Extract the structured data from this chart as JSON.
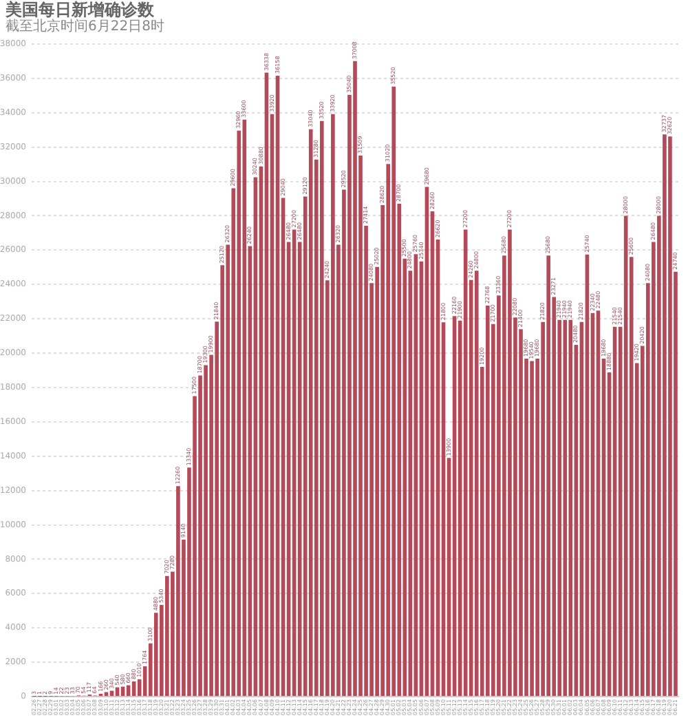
{
  "chart_data": {
    "type": "bar",
    "title": "美国每日新增确诊数",
    "subtitle": "截至北京时间6月22日8时",
    "categories": [
      "02.26",
      "02.27",
      "02.28",
      "02.29",
      "03.01",
      "03.02",
      "03.03",
      "03.04",
      "03.05",
      "03.06",
      "03.07",
      "03.08",
      "03.09",
      "03.10",
      "03.11",
      "03.12",
      "03.13",
      "03.14",
      "03.15",
      "03.16",
      "03.17",
      "03.18",
      "03.19",
      "03.20",
      "03.21",
      "03.22",
      "03.23",
      "03.24",
      "03.25",
      "03.26",
      "03.27",
      "03.28",
      "03.29",
      "03.30",
      "03.31",
      "04.01",
      "04.02",
      "04.03",
      "04.04",
      "04.05",
      "04.06",
      "04.07",
      "04.08",
      "04.09",
      "04.10",
      "04.11",
      "04.12",
      "04.13",
      "04.14",
      "04.15",
      "04.16",
      "04.17",
      "04.18",
      "04.19",
      "04.20",
      "04.21",
      "04.22",
      "04.23",
      "04.24",
      "04.25",
      "04.26",
      "04.27",
      "04.28",
      "04.29",
      "04.30",
      "05.01",
      "05.02",
      "05.03",
      "05.04",
      "05.05",
      "05.06",
      "05.07",
      "05.08",
      "05.09",
      "05.10",
      "05.11",
      "05.12",
      "05.13",
      "05.14",
      "05.15",
      "05.16",
      "05.17",
      "05.18",
      "05.19",
      "05.20",
      "05.21",
      "05.22",
      "05.23",
      "05.24",
      "05.25",
      "05.26",
      "05.27",
      "05.28",
      "05.29",
      "05.30",
      "05.31",
      "06.01",
      "06.02",
      "06.03",
      "06.04",
      "06.05",
      "06.06",
      "06.07",
      "06.08",
      "06.09",
      "06.10",
      "06.11",
      "06.12",
      "06.13",
      "06.14",
      "06.15",
      "06.16",
      "06.17",
      "06.18",
      "06.19",
      "06.20",
      "06.21"
    ],
    "values": [
      3,
      1,
      2,
      9,
      14,
      22,
      23,
      33,
      70,
      54,
      117,
      64,
      166,
      260,
      340,
      540,
      580,
      660,
      880,
      1010,
      1764,
      3100,
      4880,
      5340,
      7020,
      7280,
      12260,
      9140,
      13340,
      17500,
      18700,
      19300,
      19900,
      21840,
      25120,
      26320,
      29600,
      32960,
      33600,
      26240,
      30240,
      30880,
      36338,
      33920,
      36158,
      29040,
      26480,
      27200,
      26480,
      29120,
      33040,
      31280,
      33520,
      24240,
      33920,
      26320,
      29520,
      35040,
      37008,
      31509,
      27414,
      24080,
      25020,
      28620,
      31020,
      35520,
      28700,
      25500,
      24800,
      25760,
      25340,
      29680,
      28260,
      26620,
      21800,
      13900,
      22160,
      21900,
      27200,
      24260,
      24800,
      19200,
      22768,
      21700,
      23360,
      25680,
      27200,
      22080,
      21400,
      19680,
      19540,
      19680,
      21820,
      25680,
      23271,
      21940,
      21940,
      21940,
      20480,
      21820,
      25740,
      22340,
      22480,
      19680,
      18880,
      21540,
      21540,
      28000,
      25600,
      19420,
      20420,
      24080,
      26480,
      28000,
      32737,
      32620,
      24740
    ],
    "color": "#b24a5a",
    "ylim": [
      0,
      38000
    ],
    "yticks": [
      0,
      2000,
      4000,
      6000,
      8000,
      10000,
      12000,
      14000,
      16000,
      18000,
      20000,
      22000,
      24000,
      26000,
      28000,
      30000,
      32000,
      34000,
      36000,
      38000
    ],
    "grid": "y",
    "data_labels": true
  }
}
